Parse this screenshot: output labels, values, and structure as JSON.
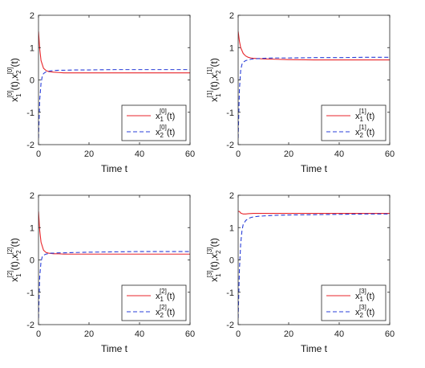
{
  "chart_data": [
    {
      "type": "line",
      "xlabel": "Time t",
      "ylabel_index": "0",
      "xlim": [
        0,
        60
      ],
      "ylim": [
        -2,
        2
      ],
      "xticks": [
        0,
        20,
        40,
        60
      ],
      "yticks": [
        -2,
        -1,
        0,
        1,
        2
      ],
      "legend_placement": "bottom-right",
      "series": [
        {
          "name": "x1[0](t)",
          "var": "1",
          "sup": "0",
          "style": "solid",
          "color": "#e8262b",
          "x": [
            0,
            0.5,
            1,
            2,
            3,
            4,
            5,
            6,
            8,
            10,
            15,
            20,
            30,
            40,
            50,
            60
          ],
          "y": [
            1.5,
            0.95,
            0.6,
            0.36,
            0.29,
            0.26,
            0.25,
            0.24,
            0.23,
            0.22,
            0.22,
            0.22,
            0.22,
            0.22,
            0.22,
            0.22
          ]
        },
        {
          "name": "x2[0](t)",
          "var": "2",
          "sup": "0",
          "style": "dashed",
          "color": "#2a3fd8",
          "x": [
            0,
            0.5,
            1,
            1.5,
            2,
            3,
            4,
            5,
            6,
            8,
            10,
            15,
            20,
            30,
            40,
            50,
            60
          ],
          "y": [
            -1.8,
            -0.6,
            -0.1,
            0.12,
            0.2,
            0.25,
            0.27,
            0.28,
            0.29,
            0.3,
            0.3,
            0.31,
            0.31,
            0.32,
            0.32,
            0.32,
            0.32
          ]
        }
      ]
    },
    {
      "type": "line",
      "xlabel": "Time t",
      "ylabel_index": "1",
      "xlim": [
        0,
        60
      ],
      "ylim": [
        -2,
        2
      ],
      "xticks": [
        0,
        20,
        40,
        60
      ],
      "yticks": [
        -2,
        -1,
        0,
        1,
        2
      ],
      "legend_placement": "bottom-right",
      "series": [
        {
          "name": "x1[1](t)",
          "var": "1",
          "sup": "1",
          "style": "solid",
          "color": "#e8262b",
          "x": [
            0,
            0.5,
            1,
            2,
            3,
            4,
            5,
            6,
            8,
            10,
            15,
            20,
            30,
            40,
            50,
            60
          ],
          "y": [
            1.5,
            1.2,
            1.0,
            0.82,
            0.74,
            0.7,
            0.68,
            0.67,
            0.66,
            0.65,
            0.64,
            0.63,
            0.62,
            0.62,
            0.62,
            0.62
          ]
        },
        {
          "name": "x2[1](t)",
          "var": "2",
          "sup": "1",
          "style": "dashed",
          "color": "#2a3fd8",
          "x": [
            0,
            0.5,
            1,
            1.5,
            2,
            3,
            4,
            5,
            6,
            8,
            10,
            15,
            20,
            30,
            40,
            50,
            60
          ],
          "y": [
            -1.8,
            -0.3,
            0.3,
            0.48,
            0.55,
            0.6,
            0.62,
            0.64,
            0.65,
            0.66,
            0.67,
            0.68,
            0.68,
            0.69,
            0.69,
            0.7,
            0.7
          ]
        }
      ]
    },
    {
      "type": "line",
      "xlabel": "Time t",
      "ylabel_index": "2",
      "xlim": [
        0,
        60
      ],
      "ylim": [
        -2,
        2
      ],
      "xticks": [
        0,
        20,
        40,
        60
      ],
      "yticks": [
        -2,
        -1,
        0,
        1,
        2
      ],
      "legend_placement": "bottom-right",
      "series": [
        {
          "name": "x1[2](t)",
          "var": "1",
          "sup": "2",
          "style": "solid",
          "color": "#e8262b",
          "x": [
            0,
            0.5,
            1,
            2,
            3,
            4,
            5,
            6,
            8,
            10,
            15,
            20,
            30,
            40,
            50,
            60
          ],
          "y": [
            1.5,
            0.9,
            0.55,
            0.3,
            0.23,
            0.21,
            0.2,
            0.19,
            0.19,
            0.18,
            0.18,
            0.18,
            0.18,
            0.18,
            0.18,
            0.18
          ]
        },
        {
          "name": "x2[2](t)",
          "var": "2",
          "sup": "2",
          "style": "dashed",
          "color": "#2a3fd8",
          "x": [
            0,
            0.5,
            1,
            1.5,
            2,
            3,
            4,
            5,
            6,
            8,
            10,
            15,
            20,
            30,
            40,
            50,
            60
          ],
          "y": [
            -1.8,
            -0.5,
            -0.05,
            0.1,
            0.15,
            0.18,
            0.2,
            0.21,
            0.21,
            0.22,
            0.22,
            0.23,
            0.24,
            0.25,
            0.26,
            0.26,
            0.26
          ]
        }
      ]
    },
    {
      "type": "line",
      "xlabel": "Time t",
      "ylabel_index": "3",
      "xlim": [
        0,
        60
      ],
      "ylim": [
        -2,
        2
      ],
      "xticks": [
        0,
        20,
        40,
        60
      ],
      "yticks": [
        -2,
        -1,
        0,
        1,
        2
      ],
      "legend_placement": "bottom-right",
      "series": [
        {
          "name": "x1[3](t)",
          "var": "1",
          "sup": "3",
          "style": "solid",
          "color": "#e8262b",
          "x": [
            0,
            0.5,
            1,
            2,
            3,
            4,
            6,
            8,
            10,
            15,
            20,
            30,
            40,
            50,
            60
          ],
          "y": [
            1.5,
            1.5,
            1.45,
            1.42,
            1.42,
            1.43,
            1.44,
            1.44,
            1.44,
            1.44,
            1.44,
            1.44,
            1.44,
            1.44,
            1.44
          ]
        },
        {
          "name": "x2[3](t)",
          "var": "2",
          "sup": "3",
          "style": "dashed",
          "color": "#2a3fd8",
          "x": [
            0,
            0.5,
            1,
            1.5,
            2,
            3,
            4,
            5,
            6,
            8,
            10,
            15,
            20,
            30,
            40,
            50,
            60
          ],
          "y": [
            -1.8,
            -0.3,
            0.5,
            0.9,
            1.1,
            1.22,
            1.28,
            1.31,
            1.33,
            1.35,
            1.36,
            1.38,
            1.39,
            1.4,
            1.41,
            1.42,
            1.42
          ]
        }
      ]
    }
  ]
}
